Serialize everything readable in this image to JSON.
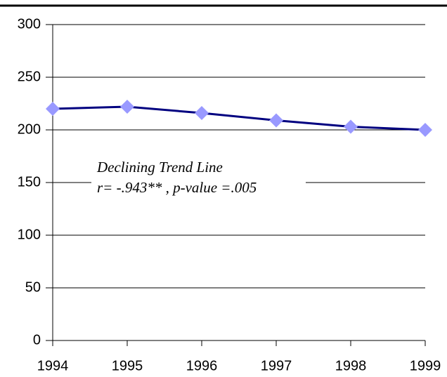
{
  "chart_data": {
    "type": "line",
    "x": [
      1994,
      1995,
      1996,
      1997,
      1998,
      1999
    ],
    "values": [
      220,
      222,
      216,
      209,
      203,
      200
    ],
    "color": "#000080",
    "marker_color": "#9999ff",
    "xlim": [
      1994,
      1999
    ],
    "xticks": [
      1994,
      1995,
      1996,
      1997,
      1998,
      1999
    ],
    "ylim": [
      0,
      300
    ],
    "yticks": [
      0,
      50,
      100,
      150,
      200,
      250,
      300
    ],
    "grid": true,
    "annotations": [
      "Declining Trend Line",
      "r= -.943** , p-value =.005"
    ]
  }
}
